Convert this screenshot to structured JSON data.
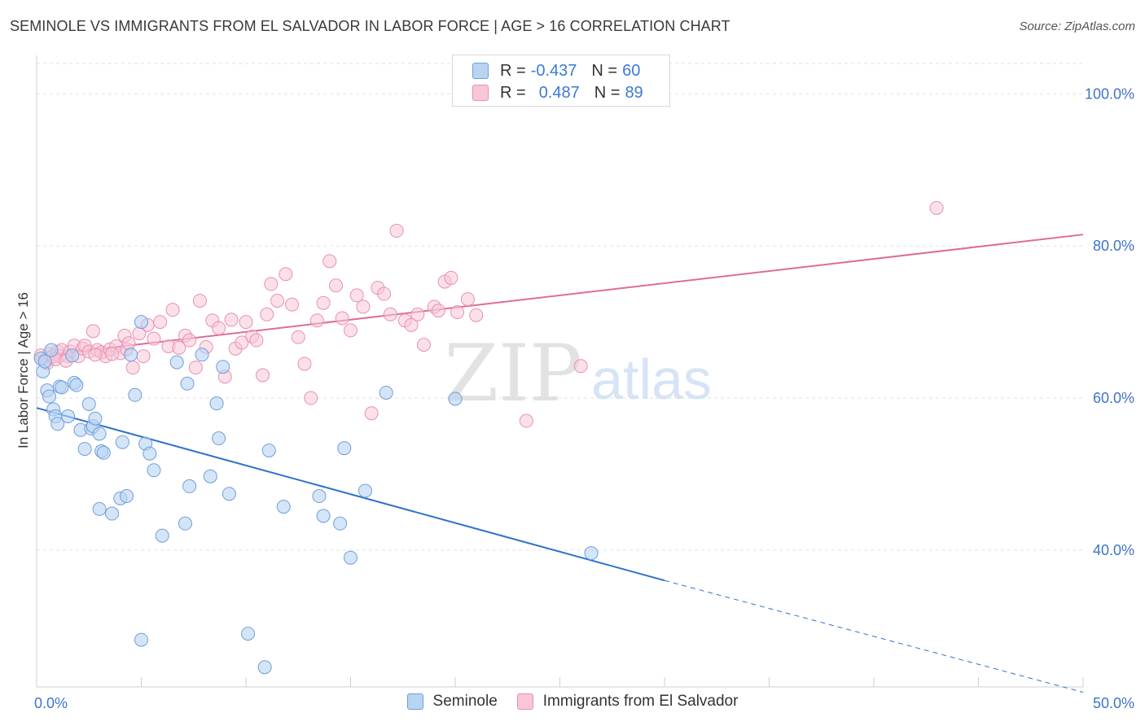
{
  "header": {
    "title": "SEMINOLE VS IMMIGRANTS FROM EL SALVADOR IN LABOR FORCE | AGE > 16 CORRELATION CHART",
    "source": "Source: ZipAtlas.com"
  },
  "watermark": {
    "zip": "ZIP",
    "atlas": "atlas"
  },
  "legend_top": {
    "rows": [
      {
        "r_label": "R =",
        "r_value": "-0.437",
        "n_label": "N =",
        "n_value": "60"
      },
      {
        "r_label": "R =",
        "r_value": "0.487",
        "n_label": "N =",
        "n_value": "89"
      }
    ]
  },
  "colors": {
    "seminole_fill": "#b9d3f3",
    "seminole_stroke": "#6f9fd8",
    "seminole_line": "#2f72c9",
    "salvador_fill": "#f8c6d8",
    "salvador_stroke": "#e990b0",
    "salvador_line": "#e06b98",
    "tick_label": "#3f74c8",
    "grid": "#e2e2e2"
  },
  "chart_data": {
    "type": "scatter",
    "title": "SEMINOLE VS IMMIGRANTS FROM EL SALVADOR IN LABOR FORCE | AGE > 16 CORRELATION CHART",
    "xlabel": "",
    "ylabel": "In Labor Force | Age > 16",
    "xlim": [
      0,
      50
    ],
    "ylim": [
      22,
      104
    ],
    "x_tick_labels": [
      "0.0%",
      "50.0%"
    ],
    "y_ticks": [
      40,
      60,
      80,
      100
    ],
    "y_tick_labels": [
      "40.0%",
      "60.0%",
      "80.0%",
      "100.0%"
    ],
    "grid": true,
    "legend": "bottom-center",
    "series": [
      {
        "name": "Seminole",
        "r": -0.437,
        "n": 60,
        "trend": {
          "x0": 0,
          "y0": 58.7,
          "x1": 30,
          "y1": 36.0,
          "dash_to_x": 50,
          "dash_to_y": 21.3
        },
        "points": [
          [
            0.2,
            65.2
          ],
          [
            0.3,
            63.5
          ],
          [
            0.4,
            64.8
          ],
          [
            0.5,
            61.0
          ],
          [
            0.6,
            60.2
          ],
          [
            0.7,
            66.3
          ],
          [
            0.8,
            58.5
          ],
          [
            0.9,
            57.6
          ],
          [
            1.0,
            56.6
          ],
          [
            1.1,
            61.5
          ],
          [
            1.2,
            61.4
          ],
          [
            1.5,
            57.6
          ],
          [
            1.7,
            65.6
          ],
          [
            1.8,
            62.0
          ],
          [
            1.9,
            61.7
          ],
          [
            2.1,
            55.8
          ],
          [
            2.3,
            53.3
          ],
          [
            2.5,
            59.2
          ],
          [
            2.6,
            56.0
          ],
          [
            2.7,
            56.3
          ],
          [
            2.8,
            57.3
          ],
          [
            3.0,
            55.3
          ],
          [
            3.1,
            53.0
          ],
          [
            3.2,
            52.8
          ],
          [
            3.0,
            45.4
          ],
          [
            3.6,
            44.8
          ],
          [
            4.0,
            46.8
          ],
          [
            4.1,
            54.2
          ],
          [
            4.3,
            47.1
          ],
          [
            4.5,
            65.7
          ],
          [
            4.7,
            60.4
          ],
          [
            5.0,
            28.2
          ],
          [
            5.2,
            54.0
          ],
          [
            5.4,
            52.7
          ],
          [
            5.6,
            50.5
          ],
          [
            5.0,
            70.0
          ],
          [
            6.0,
            41.9
          ],
          [
            6.7,
            64.7
          ],
          [
            7.1,
            43.5
          ],
          [
            7.2,
            61.9
          ],
          [
            7.3,
            48.4
          ],
          [
            7.9,
            65.7
          ],
          [
            8.3,
            49.7
          ],
          [
            8.6,
            59.3
          ],
          [
            8.7,
            54.7
          ],
          [
            8.9,
            64.1
          ],
          [
            9.2,
            47.4
          ],
          [
            10.1,
            29.0
          ],
          [
            10.9,
            24.6
          ],
          [
            11.1,
            53.1
          ],
          [
            11.8,
            45.7
          ],
          [
            13.5,
            47.1
          ],
          [
            13.7,
            44.5
          ],
          [
            14.5,
            43.5
          ],
          [
            14.7,
            53.4
          ],
          [
            15.0,
            39.0
          ],
          [
            15.7,
            47.8
          ],
          [
            16.7,
            60.7
          ],
          [
            20.0,
            59.9
          ],
          [
            26.5,
            39.6
          ]
        ]
      },
      {
        "name": "Immigrants from El Salvador",
        "r": 0.487,
        "n": 89,
        "trend": {
          "x0": 0,
          "y0": 65.5,
          "x1": 50,
          "y1": 81.5
        },
        "points": [
          [
            0.2,
            65.6
          ],
          [
            0.4,
            65.0
          ],
          [
            0.5,
            64.6
          ],
          [
            0.6,
            65.8
          ],
          [
            0.7,
            65.4
          ],
          [
            0.8,
            65.5
          ],
          [
            1.0,
            66.1
          ],
          [
            1.1,
            65.5
          ],
          [
            1.2,
            66.3
          ],
          [
            1.5,
            65.5
          ],
          [
            1.6,
            66.1
          ],
          [
            1.8,
            66.9
          ],
          [
            2.0,
            65.5
          ],
          [
            2.2,
            66.5
          ],
          [
            2.3,
            66.9
          ],
          [
            2.5,
            66.1
          ],
          [
            2.7,
            68.8
          ],
          [
            2.9,
            66.3
          ],
          [
            3.1,
            66.0
          ],
          [
            3.3,
            65.5
          ],
          [
            3.5,
            66.4
          ],
          [
            3.8,
            66.8
          ],
          [
            4.0,
            65.9
          ],
          [
            4.2,
            68.2
          ],
          [
            4.3,
            66.4
          ],
          [
            4.6,
            64.0
          ],
          [
            4.9,
            68.5
          ],
          [
            5.1,
            65.5
          ],
          [
            5.3,
            69.6
          ],
          [
            5.6,
            67.8
          ],
          [
            5.9,
            70.0
          ],
          [
            6.3,
            66.8
          ],
          [
            6.5,
            71.6
          ],
          [
            6.8,
            66.6
          ],
          [
            7.1,
            68.2
          ],
          [
            7.3,
            67.6
          ],
          [
            7.6,
            64.0
          ],
          [
            7.8,
            72.8
          ],
          [
            8.1,
            66.7
          ],
          [
            8.4,
            70.2
          ],
          [
            8.7,
            69.2
          ],
          [
            9.0,
            62.8
          ],
          [
            9.3,
            70.3
          ],
          [
            9.5,
            66.5
          ],
          [
            9.8,
            67.3
          ],
          [
            10.0,
            70.0
          ],
          [
            10.3,
            68.1
          ],
          [
            10.5,
            67.6
          ],
          [
            10.8,
            63.0
          ],
          [
            11.0,
            71.0
          ],
          [
            11.2,
            75.0
          ],
          [
            11.5,
            72.8
          ],
          [
            11.9,
            76.3
          ],
          [
            12.2,
            72.3
          ],
          [
            12.5,
            68.0
          ],
          [
            12.8,
            64.5
          ],
          [
            13.1,
            60.0
          ],
          [
            13.4,
            70.2
          ],
          [
            13.7,
            72.5
          ],
          [
            14.0,
            78.0
          ],
          [
            14.3,
            74.8
          ],
          [
            14.6,
            70.5
          ],
          [
            15.0,
            68.9
          ],
          [
            15.3,
            73.5
          ],
          [
            15.6,
            72.0
          ],
          [
            16.0,
            58.0
          ],
          [
            16.3,
            74.5
          ],
          [
            16.6,
            73.7
          ],
          [
            16.9,
            71.0
          ],
          [
            17.2,
            82.0
          ],
          [
            17.6,
            70.2
          ],
          [
            17.9,
            69.6
          ],
          [
            18.2,
            71.0
          ],
          [
            18.5,
            67.0
          ],
          [
            19.0,
            72.0
          ],
          [
            19.2,
            71.5
          ],
          [
            19.5,
            75.3
          ],
          [
            19.8,
            75.8
          ],
          [
            20.1,
            71.3
          ],
          [
            20.6,
            73.0
          ],
          [
            21.0,
            70.9
          ],
          [
            23.4,
            57.0
          ],
          [
            26.0,
            64.2
          ],
          [
            43.0,
            85.0
          ],
          [
            0.9,
            65.1
          ],
          [
            1.4,
            64.9
          ],
          [
            2.8,
            65.7
          ],
          [
            3.6,
            65.8
          ],
          [
            4.4,
            67.2
          ]
        ]
      }
    ]
  }
}
